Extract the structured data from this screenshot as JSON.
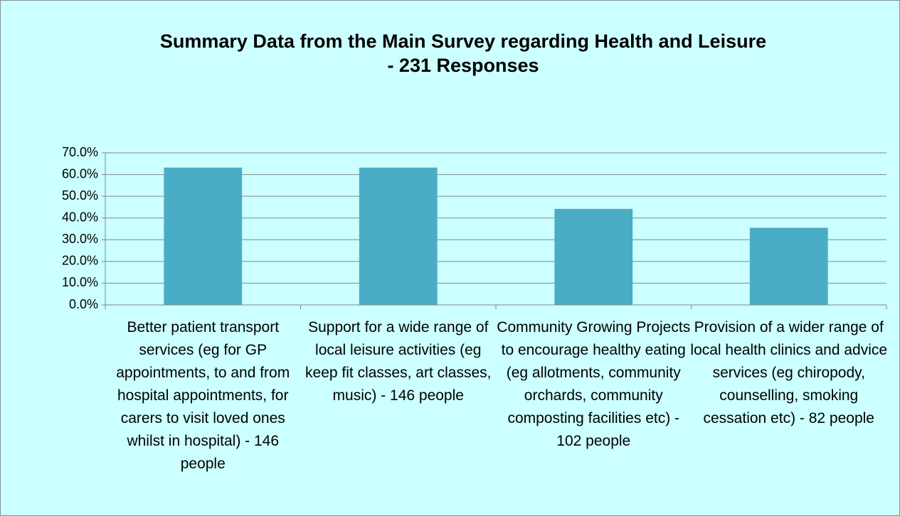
{
  "chart_data": {
    "type": "bar",
    "title": "Summary Data from the Main Survey regarding  Health and Leisure",
    "subtitle": "- 231 Responses",
    "categories": [
      "Better patient transport services (eg for GP appointments, to and from hospital appointments, for carers to visit loved ones whilst in hospital) - 146 people",
      "Support for a wide range of local leisure activities (eg keep fit classes, art classes, music) - 146 people",
      "Community Growing Projects to encourage healthy eating (eg allotments, community orchards, community composting facilities etc) - 102 people",
      "Provision of a wider range of local health clinics and advice services (eg chiropody, counselling, smoking cessation etc) - 82 people"
    ],
    "values": [
      63.2,
      63.2,
      44.2,
      35.5
    ],
    "color": "#4bacc6",
    "ylim": [
      0,
      70
    ],
    "yticks": [
      {
        "value": 0,
        "label": "0.0%"
      },
      {
        "value": 10,
        "label": "10.0%"
      },
      {
        "value": 20,
        "label": "20.0%"
      },
      {
        "value": 30,
        "label": "30.0%"
      },
      {
        "value": 40,
        "label": "40.0%"
      },
      {
        "value": 50,
        "label": "50.0%"
      },
      {
        "value": 60,
        "label": "60.0%"
      },
      {
        "value": 70,
        "label": "70.0%"
      }
    ],
    "grid": true
  }
}
